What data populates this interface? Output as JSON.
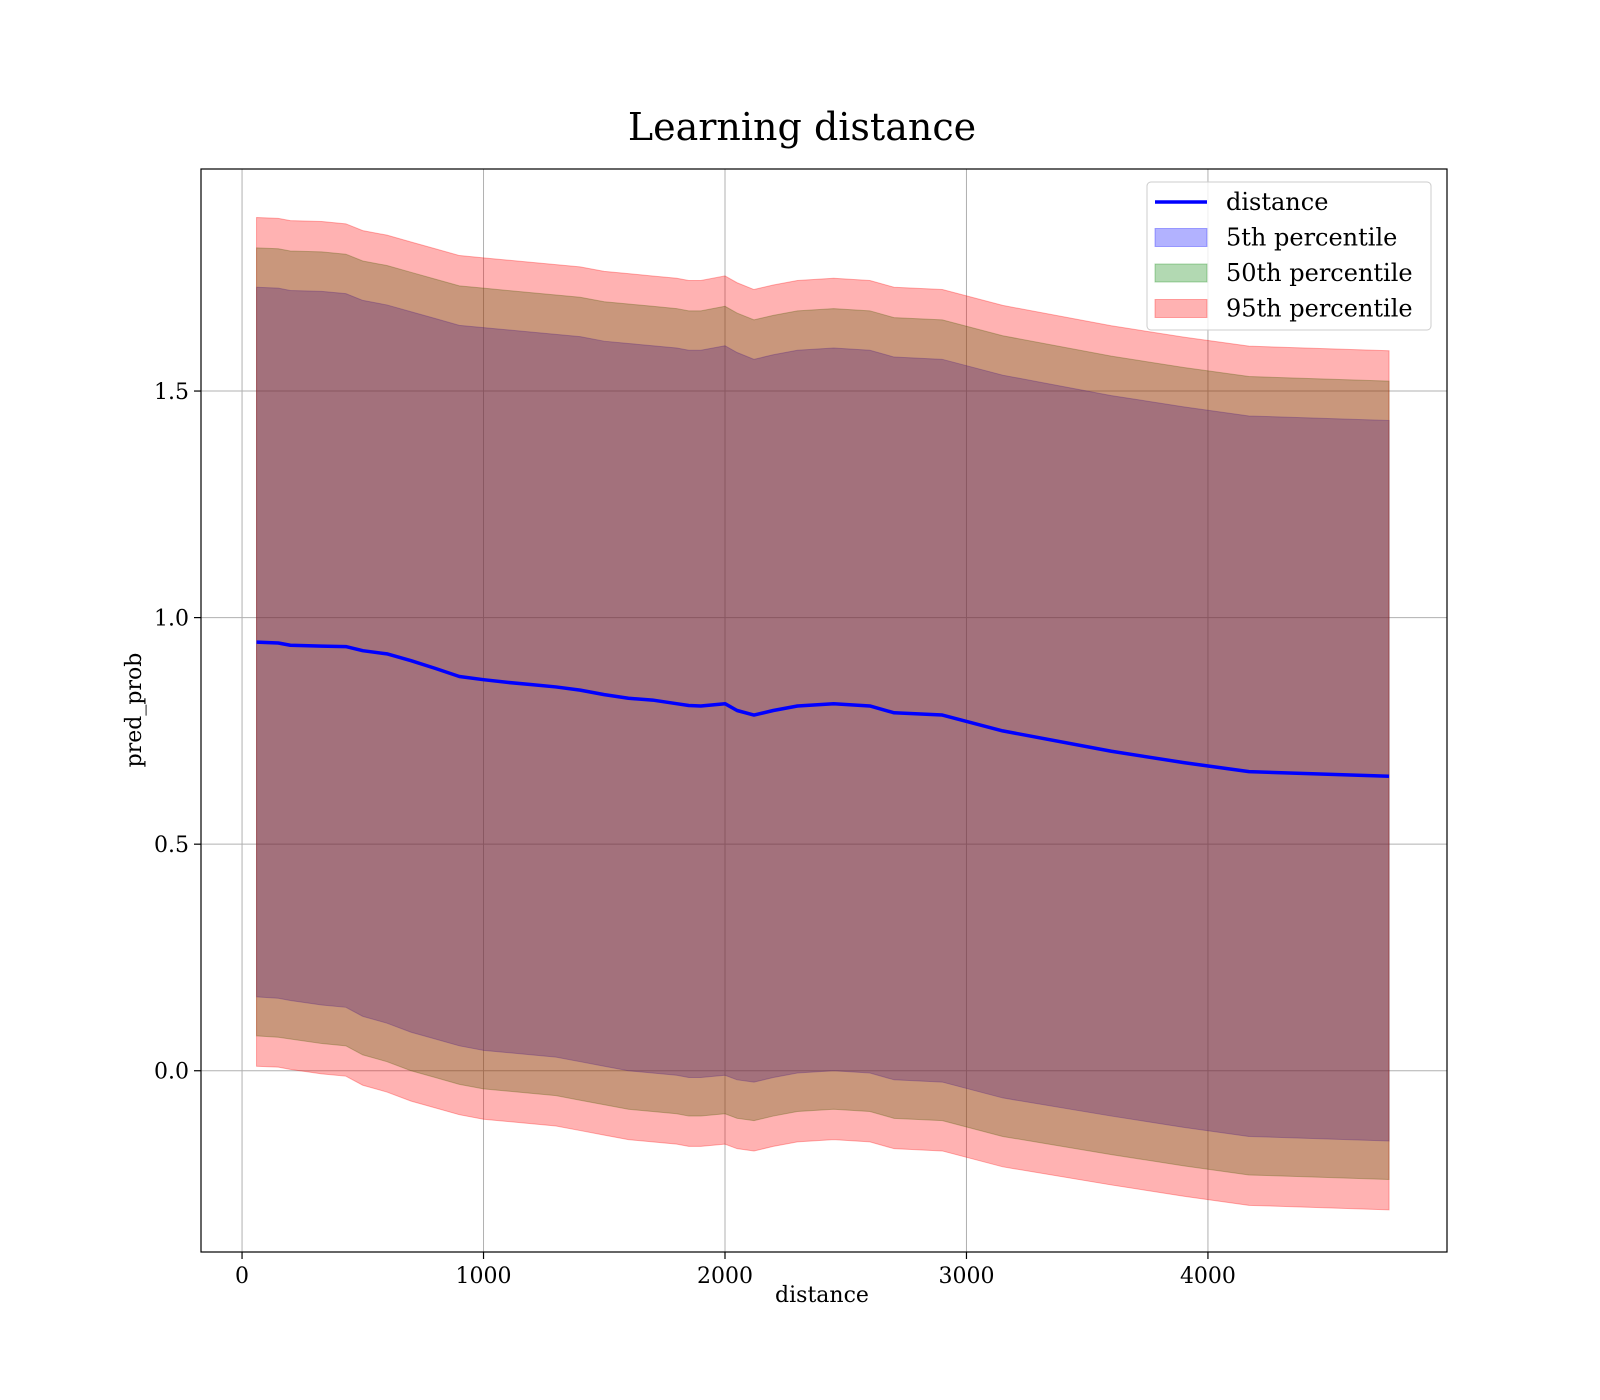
{
  "chart_data": {
    "type": "area",
    "title": "Learning distance",
    "xlabel": "distance",
    "ylabel": "pred_prob",
    "xlim": [
      -170,
      4990
    ],
    "ylim": [
      -0.4,
      1.99
    ],
    "xticks": [
      0,
      1000,
      2000,
      3000,
      4000
    ],
    "xtick_labels": [
      "0",
      "1000",
      "2000",
      "3000",
      "4000"
    ],
    "yticks": [
      0.0,
      0.5,
      1.0,
      1.5
    ],
    "ytick_labels": [
      "0.0",
      "0.5",
      "1.0",
      "1.5"
    ],
    "grid": true,
    "legend_position": "top-right",
    "x": [
      60,
      150,
      200,
      330,
      430,
      500,
      600,
      700,
      800,
      900,
      1000,
      1100,
      1200,
      1300,
      1400,
      1500,
      1600,
      1700,
      1800,
      1850,
      1900,
      2000,
      2050,
      2120,
      2200,
      2300,
      2450,
      2600,
      2700,
      2900,
      3150,
      3600,
      3900,
      4170,
      4750
    ],
    "series": [
      {
        "name": "distance",
        "kind": "line",
        "color": "#0000ff",
        "values": [
          0.946,
          0.944,
          0.939,
          0.937,
          0.936,
          0.927,
          0.92,
          0.905,
          0.888,
          0.87,
          0.863,
          0.857,
          0.852,
          0.847,
          0.84,
          0.83,
          0.822,
          0.818,
          0.81,
          0.806,
          0.805,
          0.81,
          0.795,
          0.785,
          0.795,
          0.805,
          0.81,
          0.805,
          0.79,
          0.785,
          0.75,
          0.705,
          0.68,
          0.66,
          0.65
        ]
      },
      {
        "name": "5th percentile",
        "kind": "band",
        "color": "#0000ff",
        "lower": [
          0.163,
          0.16,
          0.155,
          0.145,
          0.14,
          0.12,
          0.105,
          0.085,
          0.07,
          0.055,
          0.045,
          0.04,
          0.035,
          0.03,
          0.02,
          0.01,
          0.0,
          -0.005,
          -0.01,
          -0.015,
          -0.015,
          -0.01,
          -0.02,
          -0.025,
          -0.015,
          -0.005,
          0.0,
          -0.005,
          -0.02,
          -0.025,
          -0.06,
          -0.1,
          -0.125,
          -0.145,
          -0.155
        ],
        "upper": [
          1.729,
          1.727,
          1.722,
          1.72,
          1.715,
          1.7,
          1.69,
          1.675,
          1.66,
          1.645,
          1.64,
          1.635,
          1.63,
          1.625,
          1.62,
          1.61,
          1.605,
          1.6,
          1.595,
          1.59,
          1.59,
          1.6,
          1.585,
          1.57,
          1.58,
          1.59,
          1.595,
          1.59,
          1.575,
          1.57,
          1.535,
          1.49,
          1.465,
          1.445,
          1.435
        ]
      },
      {
        "name": "50th percentile",
        "kind": "band",
        "color": "#008000",
        "lower": [
          0.077,
          0.074,
          0.07,
          0.06,
          0.055,
          0.035,
          0.02,
          0.0,
          -0.015,
          -0.03,
          -0.04,
          -0.045,
          -0.05,
          -0.055,
          -0.065,
          -0.075,
          -0.085,
          -0.09,
          -0.095,
          -0.1,
          -0.1,
          -0.095,
          -0.105,
          -0.11,
          -0.1,
          -0.09,
          -0.085,
          -0.09,
          -0.105,
          -0.11,
          -0.145,
          -0.185,
          -0.21,
          -0.23,
          -0.24
        ],
        "upper": [
          1.816,
          1.814,
          1.809,
          1.807,
          1.802,
          1.787,
          1.777,
          1.762,
          1.747,
          1.732,
          1.727,
          1.722,
          1.717,
          1.712,
          1.707,
          1.697,
          1.692,
          1.687,
          1.682,
          1.677,
          1.677,
          1.687,
          1.672,
          1.657,
          1.667,
          1.677,
          1.682,
          1.677,
          1.662,
          1.657,
          1.622,
          1.577,
          1.552,
          1.532,
          1.522
        ]
      },
      {
        "name": "95th percentile",
        "kind": "band",
        "color": "#ff0000",
        "lower": [
          0.01,
          0.008,
          0.003,
          -0.007,
          -0.012,
          -0.032,
          -0.047,
          -0.067,
          -0.082,
          -0.097,
          -0.107,
          -0.112,
          -0.117,
          -0.122,
          -0.132,
          -0.142,
          -0.152,
          -0.157,
          -0.162,
          -0.167,
          -0.167,
          -0.162,
          -0.172,
          -0.177,
          -0.167,
          -0.157,
          -0.152,
          -0.157,
          -0.172,
          -0.177,
          -0.212,
          -0.252,
          -0.277,
          -0.297,
          -0.307
        ],
        "upper": [
          1.883,
          1.881,
          1.876,
          1.874,
          1.869,
          1.854,
          1.844,
          1.829,
          1.814,
          1.799,
          1.794,
          1.789,
          1.784,
          1.779,
          1.774,
          1.764,
          1.759,
          1.754,
          1.749,
          1.744,
          1.744,
          1.754,
          1.739,
          1.724,
          1.734,
          1.744,
          1.749,
          1.744,
          1.729,
          1.724,
          1.689,
          1.644,
          1.619,
          1.599,
          1.589
        ]
      }
    ]
  }
}
